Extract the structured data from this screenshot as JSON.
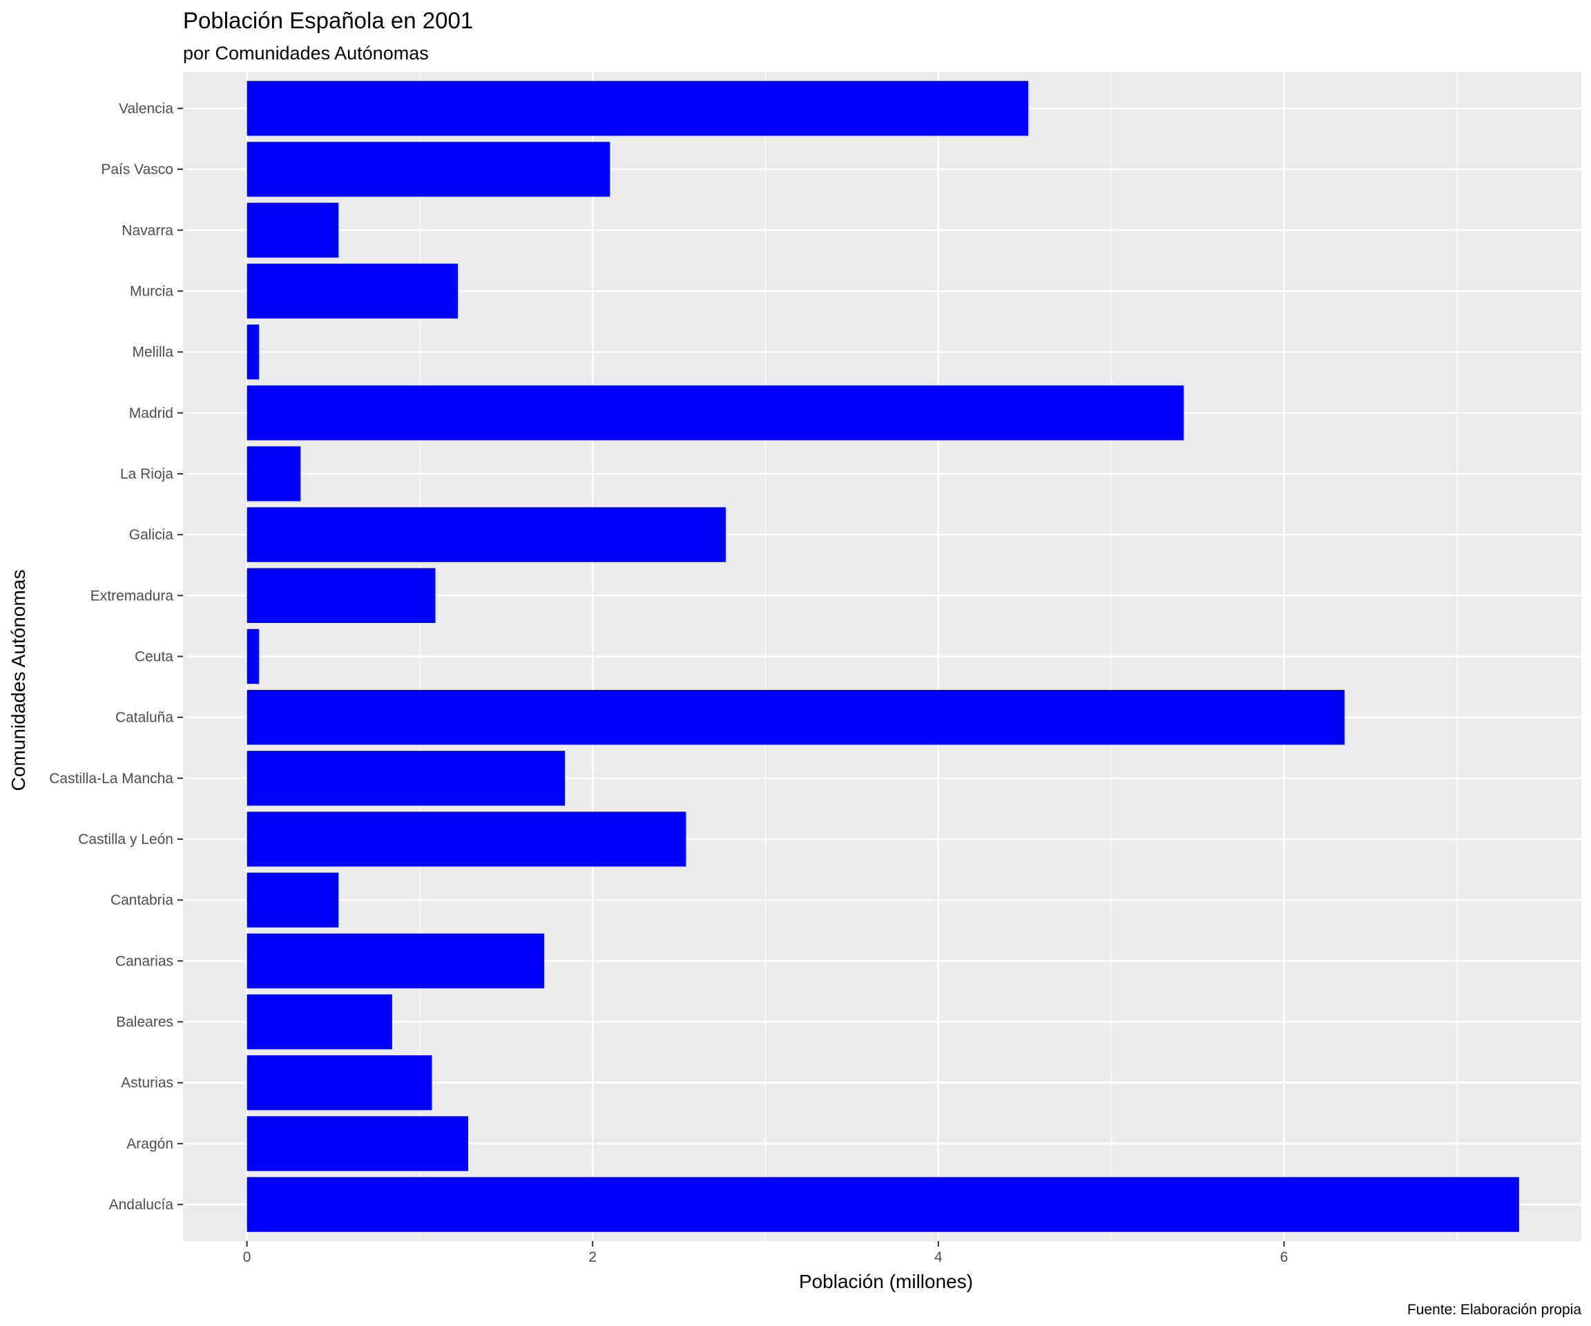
{
  "chart_data": {
    "type": "bar",
    "orientation": "horizontal",
    "title": "Población Española en 2001",
    "subtitle": "por Comunidades Autónomas",
    "xlabel": "Población (millones)",
    "ylabel": "Comunidades Autónomas",
    "caption": "Fuente: Elaboración propia",
    "categories": [
      "Andalucía",
      "Aragón",
      "Asturias",
      "Baleares",
      "Canarias",
      "Cantabria",
      "Castilla y León",
      "Castilla-La Mancha",
      "Cataluña",
      "Ceuta",
      "Extremadura",
      "Galicia",
      "La Rioja",
      "Madrid",
      "Melilla",
      "Murcia",
      "Navarra",
      "País Vasco",
      "Valencia"
    ],
    "values": [
      7.36,
      1.28,
      1.07,
      0.84,
      1.72,
      0.53,
      2.54,
      1.84,
      6.35,
      0.07,
      1.09,
      2.77,
      0.31,
      5.42,
      0.07,
      1.22,
      0.53,
      2.1,
      4.52
    ],
    "xlim": [
      -0.37,
      7.72
    ],
    "xticks": [
      0,
      2,
      4,
      6
    ],
    "xtick_labels": [
      "0",
      "2",
      "4",
      "6"
    ],
    "bar_color": "#0000ff",
    "panel_color": "#ebebeb",
    "grid_color": "#ffffff",
    "grid": true,
    "legend": "none"
  }
}
